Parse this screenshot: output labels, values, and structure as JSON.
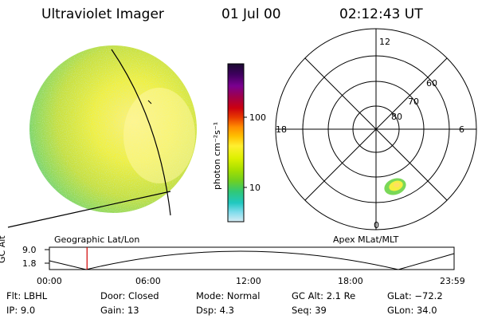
{
  "header": {
    "instrument": "Ultraviolet Imager",
    "date": "01 Jul 00",
    "time": "02:12:43 UT"
  },
  "colorbar": {
    "label": "photon cm⁻²s⁻¹",
    "ticks": [
      "100",
      "10"
    ],
    "colors": [
      "#1a0a30",
      "#400060",
      "#7a0090",
      "#a0004a",
      "#cc0010",
      "#e83a00",
      "#ff8c00",
      "#ffc000",
      "#ffef30",
      "#dcf000",
      "#a8e000",
      "#70d020",
      "#30c878",
      "#20c8c0",
      "#80dcec",
      "#d8ecf4"
    ]
  },
  "left_map": {
    "label": "Geographic Lat/Lon"
  },
  "polar_map": {
    "label": "Apex MLat/MLT",
    "mlt_labels": {
      "top": "12",
      "left": "18",
      "right": "6",
      "bottom": "0"
    },
    "lat_labels": [
      "60",
      "70",
      "80"
    ]
  },
  "altitude_plot": {
    "ylabel": "GC Alt",
    "yticks": [
      "9.0",
      "1.8"
    ],
    "xticks": [
      "00:00",
      "06:00",
      "12:00",
      "18:00",
      "23:59"
    ],
    "current_time_fraction": 0.093
  },
  "info": {
    "flt": "Flt: LBHL",
    "ip": "IP:  9.0",
    "door": "Door: Closed",
    "gain": "Gain: 13",
    "mode": "Mode: Normal",
    "dsp": "Dsp:     4.3",
    "gcalt": "GC Alt: 2.1 Re",
    "seq": "Seq: 39",
    "glat": "GLat: −72.2",
    "glon": "GLon:  34.0"
  }
}
